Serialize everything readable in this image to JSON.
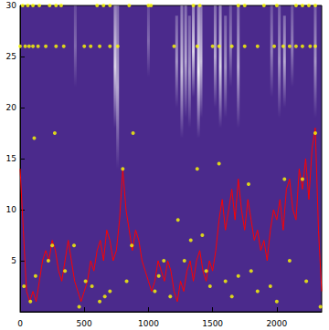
{
  "chart_data": {
    "type": "line",
    "color": "#4b2a8c",
    "xlim": [
      0,
      2350
    ],
    "xticks": [
      0,
      500,
      1000,
      1500,
      2000
    ],
    "ylim": [
      0,
      30
    ],
    "yticks": [
      5,
      10,
      15,
      20,
      25,
      30
    ],
    "series": [
      {
        "type": "line",
        "color": "#ff0000",
        "line_style": "solid",
        "x": [
          0,
          25,
          50,
          75,
          100,
          125,
          150,
          175,
          200,
          225,
          250,
          275,
          300,
          325,
          350,
          375,
          400,
          425,
          450,
          475,
          500,
          525,
          550,
          575,
          600,
          625,
          650,
          675,
          700,
          725,
          750,
          775,
          800,
          825,
          850,
          875,
          900,
          925,
          950,
          975,
          1000,
          1025,
          1050,
          1075,
          1100,
          1125,
          1150,
          1175,
          1200,
          1225,
          1250,
          1275,
          1300,
          1325,
          1350,
          1375,
          1400,
          1425,
          1450,
          1475,
          1500,
          1525,
          1550,
          1575,
          1600,
          1625,
          1650,
          1675,
          1700,
          1725,
          1750,
          1775,
          1800,
          1825,
          1850,
          1875,
          1900,
          1925,
          1950,
          1975,
          2000,
          2025,
          2050,
          2075,
          2100,
          2125,
          2150,
          2175,
          2200,
          2225,
          2250,
          2275,
          2300,
          2325,
          2350
        ],
        "values": [
          14,
          8,
          2,
          1,
          2,
          1,
          3,
          5,
          6,
          5,
          7,
          6,
          4,
          3,
          5,
          7,
          5,
          3,
          2,
          1,
          2,
          3,
          5,
          4,
          6,
          7,
          5,
          8,
          7,
          5,
          6,
          9,
          14,
          10,
          8,
          6,
          8,
          7,
          5,
          4,
          3,
          2,
          3,
          5,
          4,
          3,
          5,
          4,
          2,
          1,
          3,
          2,
          4,
          5,
          3,
          5,
          6,
          4,
          3,
          5,
          4,
          6,
          9,
          11,
          8,
          10,
          12,
          9,
          13,
          10,
          8,
          11,
          9,
          7,
          8,
          6,
          7,
          5,
          8,
          10,
          9,
          11,
          8,
          12,
          13,
          10,
          9,
          14,
          12,
          15,
          11,
          16,
          18,
          8,
          2
        ]
      },
      {
        "type": "scatter",
        "color": "#ffff00",
        "marker": "circle",
        "x": [
          20,
          60,
          100,
          150,
          230,
          280,
          320,
          600,
          650,
          700,
          850,
          1000,
          1020,
          1350,
          1400,
          1700,
          1750,
          1900,
          2000,
          2150,
          2200,
          2250,
          2300,
          0,
          40,
          70,
          100,
          140,
          200,
          280,
          340,
          500,
          550,
          620,
          700,
          760,
          1200,
          1380,
          1500,
          1550,
          1650,
          1750,
          1850,
          1980,
          2050,
          2100,
          2150,
          2200,
          2260,
          2300,
          110,
          270,
          880,
          800,
          1380,
          1550,
          2300,
          2200,
          2060,
          1780,
          1230,
          220,
          250,
          350,
          420,
          460,
          510,
          560,
          620,
          660,
          700,
          830,
          870,
          1050,
          1080,
          1120,
          1170,
          1280,
          1330,
          1420,
          1450,
          1480,
          1600,
          1650,
          1700,
          1800,
          1850,
          1950,
          2000,
          2100,
          2230,
          2340,
          30,
          80,
          120
        ],
        "values": [
          30,
          30,
          30,
          30,
          30,
          30,
          30,
          30,
          30,
          30,
          30,
          30,
          30,
          30,
          30,
          30,
          30,
          30,
          30,
          30,
          30,
          30,
          30,
          26,
          26,
          26,
          26,
          26,
          26,
          26,
          26,
          26,
          26,
          26,
          26,
          26,
          26,
          26,
          26,
          26,
          26,
          26,
          26,
          26,
          26,
          26,
          26,
          26,
          26,
          26,
          17,
          17.5,
          17.5,
          14,
          14,
          14.5,
          17.5,
          13,
          13,
          12.5,
          9,
          5,
          6.5,
          4,
          6.5,
          0.5,
          3,
          2.5,
          1,
          1.5,
          2,
          3,
          6.5,
          2,
          3.5,
          5,
          1.5,
          5,
          7,
          7.5,
          4,
          2.5,
          3,
          1.5,
          3.5,
          4,
          2,
          2.5,
          1,
          5,
          3,
          0.5,
          2.5,
          1,
          3.5
        ]
      }
    ],
    "streaks": {
      "x": [
        430,
        740,
        760,
        1000,
        1220,
        1260,
        1290,
        1320,
        1350,
        1390,
        1410,
        1520,
        1560,
        1600,
        1640,
        1700,
        1960,
        2020,
        2060,
        2120,
        2300
      ],
      "y_low": [
        22,
        18,
        14,
        23,
        20,
        17,
        19,
        18,
        21,
        17,
        19,
        20,
        18,
        19,
        22,
        18,
        21,
        19,
        20,
        22,
        19
      ],
      "y_high": [
        30,
        30,
        30,
        30,
        29,
        30,
        30,
        29,
        30,
        30,
        30,
        30,
        30,
        29,
        30,
        30,
        30,
        30,
        29,
        30,
        30
      ],
      "intensity": [
        0.3,
        0.8,
        0.6,
        0.3,
        0.5,
        0.7,
        0.6,
        0.5,
        0.8,
        0.9,
        0.7,
        0.6,
        0.8,
        0.5,
        0.4,
        0.6,
        0.4,
        0.5,
        0.6,
        0.4,
        0.5
      ]
    }
  }
}
